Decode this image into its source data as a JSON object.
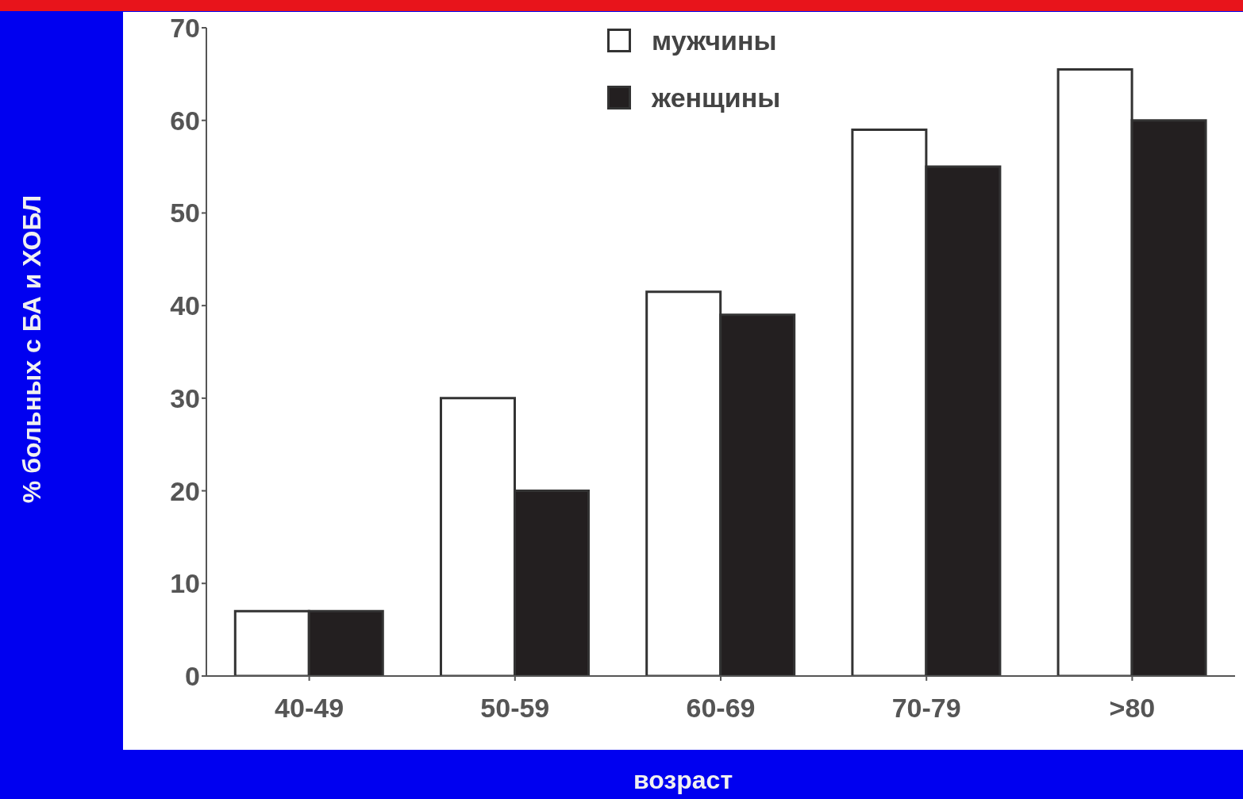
{
  "chart_data": {
    "type": "bar",
    "xlabel": "возраст",
    "ylabel": "% больных с БА и ХОБЛ",
    "categories": [
      "40-49",
      "50-59",
      "60-69",
      "70-79",
      ">80"
    ],
    "series": [
      {
        "name": "мужчины",
        "color": "#ffffff",
        "values": [
          7,
          30,
          41.5,
          59,
          65.5
        ]
      },
      {
        "name": "женщины",
        "color": "#231f20",
        "values": [
          7,
          20,
          39,
          55,
          60
        ]
      }
    ],
    "ylim": [
      0,
      70
    ],
    "yticks": [
      0,
      10,
      20,
      30,
      40,
      50,
      60,
      70
    ],
    "grid": false,
    "legend": "top"
  }
}
